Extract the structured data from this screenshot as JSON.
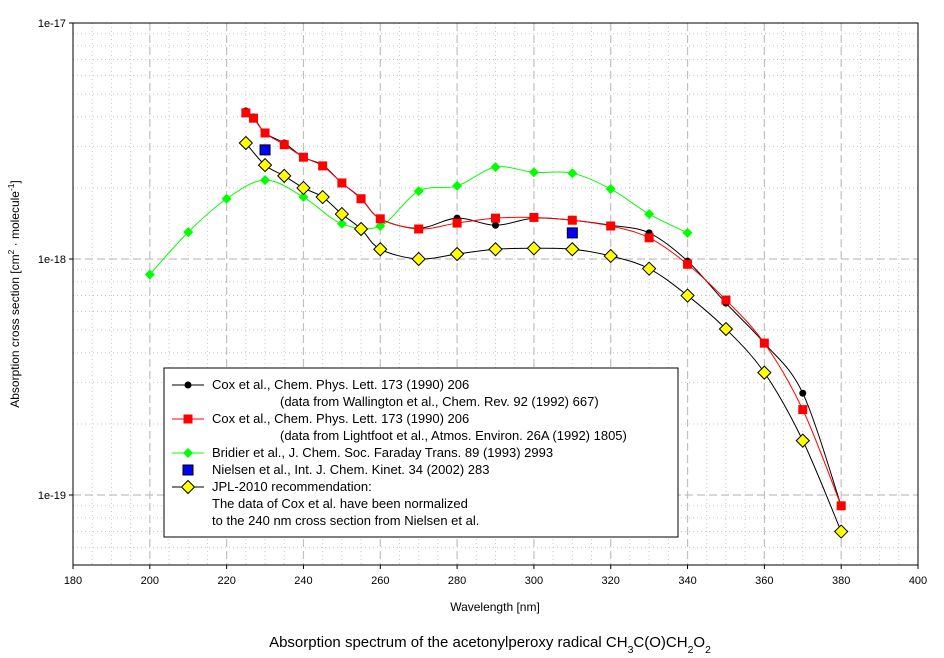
{
  "chart_data": {
    "type": "line",
    "title_parts": [
      {
        "t": "Absorption spectrum of the acetonylperoxy radical CH"
      },
      {
        "t": "3",
        "sub": true
      },
      {
        "t": "C(O)CH"
      },
      {
        "t": "2",
        "sub": true
      },
      {
        "t": "O"
      },
      {
        "t": "2",
        "sub": true
      }
    ],
    "xlabel": "Wavelength [nm]",
    "ylabel_parts": [
      {
        "t": "Absorption cross section [cm"
      },
      {
        "t": "2",
        "sup": true
      },
      {
        "t": " · molecule"
      },
      {
        "t": "-1",
        "sup": true
      },
      {
        "t": "]"
      }
    ],
    "xlim": [
      180,
      400
    ],
    "ylim": [
      5e-20,
      1e-17
    ],
    "yscale": "log",
    "x_ticks": [
      "180",
      "200",
      "220",
      "240",
      "260",
      "280",
      "300",
      "320",
      "340",
      "360",
      "380",
      "400"
    ],
    "y_ticks": [
      {
        "label": "1e-17",
        "value": 1e-17
      },
      {
        "label": "1e-18",
        "value": 1e-18
      },
      {
        "label": "1e-19",
        "value": 1e-19
      }
    ],
    "grid": true,
    "legend_position": "lower-left",
    "series": [
      {
        "name": "Cox et al., Chem. Phys. Lett. 173 (1990) 206",
        "name2": "(data from Wallington et al., Chem. Rev. 92 (1992) 667)",
        "color": "#000000",
        "marker": "circle",
        "line": true,
        "x": [
          225,
          227,
          230,
          235,
          240,
          245,
          250,
          255,
          260,
          270,
          280,
          290,
          300,
          310,
          320,
          330,
          340,
          350,
          360,
          370,
          380
        ],
        "y": [
          4.24e-18,
          4e-18,
          3.42e-18,
          3.1e-18,
          2.7e-18,
          2.5e-18,
          2.1e-18,
          1.81e-18,
          1.48e-18,
          1.35e-18,
          1.49e-18,
          1.39e-18,
          1.49e-18,
          1.46e-18,
          1.39e-18,
          1.29e-18,
          9.8e-19,
          6.5e-19,
          4.4e-19,
          2.7e-19,
          9e-20
        ]
      },
      {
        "name": "Cox et al., Chem. Phys. Lett. 173 (1990) 206",
        "name2": "(data from Lightfoot et al., Atmos. Environ. 26A (1992) 1805)",
        "color": "#ff0000",
        "marker": "square",
        "line": true,
        "x": [
          225,
          227,
          230,
          235,
          240,
          245,
          250,
          255,
          260,
          270,
          280,
          290,
          300,
          310,
          320,
          330,
          340,
          350,
          360,
          370,
          380
        ],
        "y": [
          4.16e-18,
          3.95e-18,
          3.42e-18,
          3.05e-18,
          2.7e-18,
          2.48e-18,
          2.1e-18,
          1.8e-18,
          1.48e-18,
          1.34e-18,
          1.42e-18,
          1.49e-18,
          1.5e-18,
          1.46e-18,
          1.38e-18,
          1.23e-18,
          9.5e-19,
          6.7e-19,
          4.4e-19,
          2.3e-19,
          9e-20
        ]
      },
      {
        "name": "Bridier et al., J. Chem. Soc. Faraday Trans. 89 (1993) 2993",
        "color": "#00ff00",
        "marker": "diamond-small",
        "line": true,
        "x": [
          200,
          210,
          220,
          230,
          240,
          250,
          260,
          270,
          280,
          290,
          300,
          310,
          320,
          330,
          340
        ],
        "y": [
          8.6e-19,
          1.3e-18,
          1.8e-18,
          2.16e-18,
          1.83e-18,
          1.41e-18,
          1.38e-18,
          1.94e-18,
          2.04e-18,
          2.45e-18,
          2.33e-18,
          2.31e-18,
          1.98e-18,
          1.55e-18,
          1.29e-18
        ]
      },
      {
        "name": "Nielsen et al., Int. J. Chem. Kinet. 34 (2002) 283",
        "color": "#0000ff",
        "marker": "square-outlined",
        "line": false,
        "x": [
          230,
          310
        ],
        "y": [
          2.9e-18,
          1.29e-18
        ]
      },
      {
        "name": "JPL-2010 recommendation:",
        "name2": "The data of Cox et al. have been normalized",
        "name3": "to the 240 nm cross section from Nielsen et al.",
        "color": "#ffff00",
        "marker": "diamond",
        "line": true,
        "x": [
          225,
          230,
          235,
          240,
          245,
          250,
          255,
          260,
          270,
          280,
          290,
          300,
          310,
          320,
          330,
          340,
          350,
          360,
          370,
          380
        ],
        "y": [
          3.1e-18,
          2.5e-18,
          2.25e-18,
          2e-18,
          1.83e-18,
          1.55e-18,
          1.34e-18,
          1.1e-18,
          1e-18,
          1.05e-18,
          1.1e-18,
          1.11e-18,
          1.1e-18,
          1.03e-18,
          9.1e-19,
          7e-19,
          5.05e-19,
          3.3e-19,
          1.7e-19,
          7e-20
        ]
      }
    ]
  }
}
